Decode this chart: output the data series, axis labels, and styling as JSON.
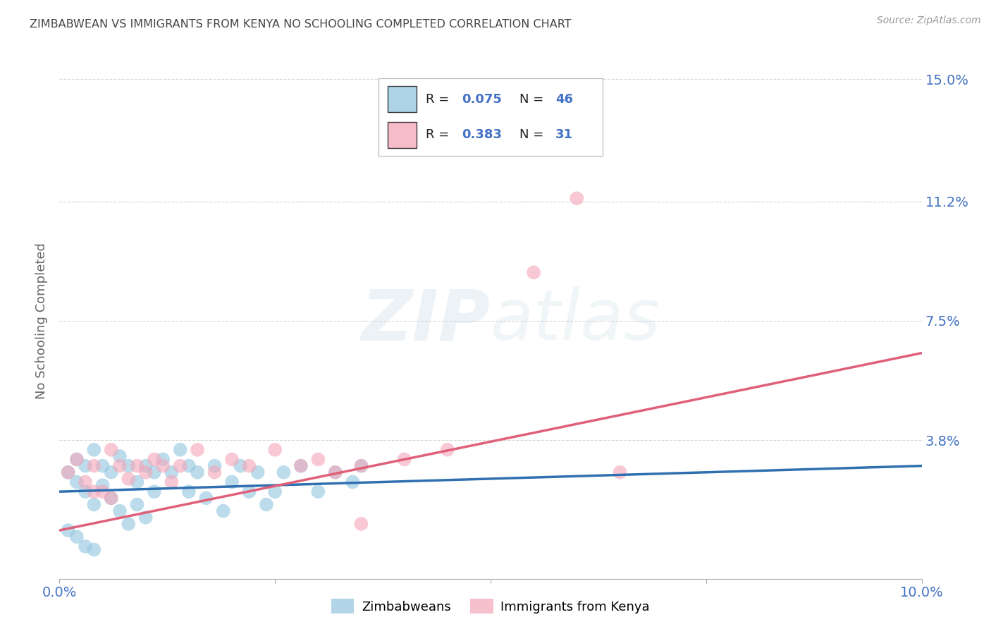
{
  "title": "ZIMBABWEAN VS IMMIGRANTS FROM KENYA NO SCHOOLING COMPLETED CORRELATION CHART",
  "source": "Source: ZipAtlas.com",
  "ylabel": "No Schooling Completed",
  "xlim": [
    0.0,
    0.1
  ],
  "ylim": [
    -0.005,
    0.155
  ],
  "xticks": [
    0.0,
    0.025,
    0.05,
    0.075,
    0.1
  ],
  "xtick_labels": [
    "0.0%",
    "",
    "",
    "",
    "10.0%"
  ],
  "ytick_positions": [
    0.038,
    0.075,
    0.112,
    0.15
  ],
  "ytick_labels": [
    "3.8%",
    "7.5%",
    "11.2%",
    "15.0%"
  ],
  "blue_color": "#92c5de",
  "pink_color": "#f4a6b8",
  "blue_line_color": "#3070b0",
  "pink_line_color": "#e0607a",
  "watermark_zip": "ZIP",
  "watermark_atlas": "atlas",
  "blue_scatter_x": [
    0.001,
    0.002,
    0.002,
    0.003,
    0.003,
    0.004,
    0.004,
    0.005,
    0.005,
    0.006,
    0.006,
    0.007,
    0.007,
    0.008,
    0.008,
    0.009,
    0.009,
    0.01,
    0.01,
    0.011,
    0.011,
    0.012,
    0.013,
    0.014,
    0.015,
    0.015,
    0.016,
    0.017,
    0.018,
    0.019,
    0.02,
    0.021,
    0.022,
    0.023,
    0.024,
    0.025,
    0.026,
    0.028,
    0.03,
    0.032,
    0.034,
    0.035,
    0.001,
    0.002,
    0.003,
    0.004
  ],
  "blue_scatter_y": [
    0.028,
    0.032,
    0.025,
    0.03,
    0.022,
    0.035,
    0.018,
    0.03,
    0.024,
    0.028,
    0.02,
    0.033,
    0.016,
    0.03,
    0.012,
    0.025,
    0.018,
    0.03,
    0.014,
    0.028,
    0.022,
    0.032,
    0.028,
    0.035,
    0.03,
    0.022,
    0.028,
    0.02,
    0.03,
    0.016,
    0.025,
    0.03,
    0.022,
    0.028,
    0.018,
    0.022,
    0.028,
    0.03,
    0.022,
    0.028,
    0.025,
    0.03,
    0.01,
    0.008,
    0.005,
    0.004
  ],
  "pink_scatter_x": [
    0.001,
    0.002,
    0.003,
    0.004,
    0.005,
    0.006,
    0.007,
    0.008,
    0.009,
    0.01,
    0.011,
    0.012,
    0.013,
    0.014,
    0.016,
    0.018,
    0.02,
    0.022,
    0.025,
    0.028,
    0.03,
    0.032,
    0.035,
    0.04,
    0.045,
    0.06,
    0.065,
    0.004,
    0.006,
    0.055,
    0.035
  ],
  "pink_scatter_y": [
    0.028,
    0.032,
    0.025,
    0.03,
    0.022,
    0.035,
    0.03,
    0.026,
    0.03,
    0.028,
    0.032,
    0.03,
    0.025,
    0.03,
    0.035,
    0.028,
    0.032,
    0.03,
    0.035,
    0.03,
    0.032,
    0.028,
    0.03,
    0.032,
    0.035,
    0.113,
    0.028,
    0.022,
    0.02,
    0.09,
    0.012
  ],
  "blue_line_x": [
    0.0,
    0.1
  ],
  "blue_line_y": [
    0.022,
    0.03
  ],
  "pink_line_x": [
    0.0,
    0.1
  ],
  "pink_line_y": [
    0.01,
    0.065
  ],
  "background_color": "#ffffff",
  "grid_color": "#cccccc",
  "title_color": "#444444",
  "text_color_blue": "#4472c4",
  "text_color_dark": "#222222"
}
